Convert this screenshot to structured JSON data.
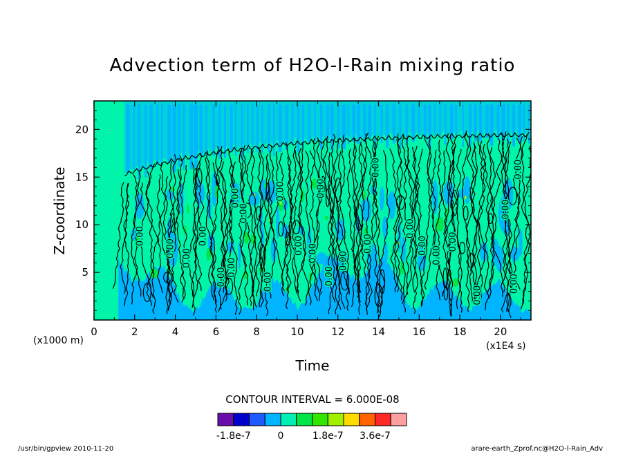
{
  "chart_data": {
    "type": "heatmap",
    "title": "Advection term of H2O-l-Rain mixing ratio",
    "xlabel": "Time",
    "ylabel": "Z-coordinate",
    "x_unit_note": "(x1E4 s)",
    "y_unit_note": "(x1000 m)",
    "xlim": [
      0,
      21.5
    ],
    "ylim": [
      0,
      23
    ],
    "x_ticks": [
      "0",
      "2",
      "4",
      "6",
      "8",
      "10",
      "12",
      "14",
      "16",
      "18",
      "20"
    ],
    "y_ticks": [
      "5",
      "10",
      "15",
      "20"
    ],
    "contour_interval_text": "CONTOUR INTERVAL = 6.000E-08",
    "contour_label": "0.00",
    "colorbar": {
      "colors": [
        "#6a0dad",
        "#0000cd",
        "#1e5aff",
        "#00b4ff",
        "#00f0b4",
        "#00e646",
        "#32e600",
        "#a0f000",
        "#ffdc00",
        "#ff6400",
        "#ff2828",
        "#ffa0a0"
      ],
      "tick_labels": [
        "-1.8e-7",
        "0",
        "1.8e-7",
        "3.6e-7"
      ]
    },
    "background_color": "#00f5aa",
    "footer_left": "/usr/bin/gpview   2010-11-20",
    "footer_right": "arare-earth_Zprof.nc@H2O-l-Rain_Adv"
  }
}
